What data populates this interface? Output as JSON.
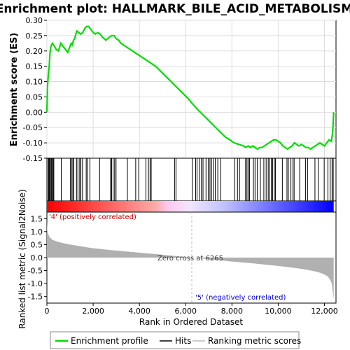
{
  "chart_data": {
    "type": "line",
    "title": "Enrichment plot: HALLMARK_BILE_ACID_METABOLISM",
    "top_panel": {
      "ylabel": "Enrichment score (ES)",
      "ylim": [
        -0.15,
        0.3
      ],
      "yticks": [
        "0.30",
        "0.25",
        "0.20",
        "0.15",
        "0.10",
        "0.05",
        "0.00",
        "-0.05",
        "-0.10",
        "-0.15"
      ],
      "ytick_values": [
        0.3,
        0.25,
        0.2,
        0.15,
        0.1,
        0.05,
        0.0,
        -0.05,
        -0.1,
        -0.15
      ],
      "grid": true,
      "series": [
        {
          "name": "Enrichment profile",
          "color": "#00dd00",
          "x": [
            0,
            30,
            60,
            100,
            130,
            160,
            200,
            240,
            280,
            330,
            400,
            500,
            600,
            700,
            800,
            900,
            1000,
            1050,
            1100,
            1150,
            1200,
            1250,
            1300,
            1380,
            1450,
            1550,
            1650,
            1720,
            1800,
            1900,
            2000,
            2100,
            2200,
            2300,
            2400,
            2550,
            2700,
            2800,
            2900,
            3000,
            3100,
            3200,
            3300,
            3400,
            3500,
            3600,
            3700,
            3800,
            3900,
            4000,
            4100,
            4200,
            4300,
            4400,
            4500,
            4700,
            4900,
            5100,
            5300,
            5500,
            5700,
            5900,
            6100,
            6265,
            6500,
            6700,
            6900,
            7100,
            7300,
            7500,
            7700,
            7900,
            8100,
            8300,
            8500,
            8600,
            8700,
            8800,
            8900,
            9000,
            9100,
            9200,
            9300,
            9400,
            9500,
            9600,
            9700,
            9800,
            9900,
            10000,
            10100,
            10200,
            10300,
            10400,
            10500,
            10600,
            10700,
            10800,
            10900,
            11000,
            11100,
            11200,
            11300,
            11400,
            11500,
            11600,
            11700,
            11800,
            11900,
            12000,
            12100,
            12200,
            12300,
            12350,
            12380,
            12400
          ],
          "y": [
            0.0,
            0.09,
            0.12,
            0.15,
            0.19,
            0.21,
            0.22,
            0.225,
            0.22,
            0.215,
            0.205,
            0.2,
            0.225,
            0.215,
            0.205,
            0.195,
            0.215,
            0.225,
            0.22,
            0.235,
            0.24,
            0.255,
            0.265,
            0.26,
            0.255,
            0.26,
            0.275,
            0.28,
            0.28,
            0.27,
            0.26,
            0.255,
            0.26,
            0.255,
            0.245,
            0.235,
            0.245,
            0.25,
            0.25,
            0.24,
            0.235,
            0.225,
            0.22,
            0.215,
            0.21,
            0.205,
            0.2,
            0.195,
            0.19,
            0.185,
            0.18,
            0.175,
            0.17,
            0.165,
            0.16,
            0.15,
            0.135,
            0.12,
            0.105,
            0.09,
            0.075,
            0.06,
            0.045,
            0.03,
            0.01,
            -0.005,
            -0.02,
            -0.035,
            -0.05,
            -0.065,
            -0.08,
            -0.09,
            -0.1,
            -0.105,
            -0.11,
            -0.115,
            -0.11,
            -0.115,
            -0.11,
            -0.115,
            -0.12,
            -0.115,
            -0.115,
            -0.11,
            -0.105,
            -0.1,
            -0.095,
            -0.09,
            -0.09,
            -0.095,
            -0.1,
            -0.11,
            -0.115,
            -0.12,
            -0.115,
            -0.11,
            -0.1,
            -0.105,
            -0.11,
            -0.105,
            -0.11,
            -0.115,
            -0.115,
            -0.12,
            -0.115,
            -0.11,
            -0.105,
            -0.1,
            -0.105,
            -0.11,
            -0.1,
            -0.09,
            -0.095,
            -0.07,
            -0.03,
            0.0
          ]
        }
      ]
    },
    "hits": [
      60,
      90,
      120,
      160,
      200,
      230,
      270,
      300,
      620,
      1020,
      1060,
      1120,
      1160,
      1280,
      1340,
      1420,
      1470,
      1540,
      1700,
      1750,
      1860,
      2280,
      2750,
      2800,
      2860,
      2930,
      2990,
      3480,
      3840,
      3970,
      4280,
      4390,
      4460,
      4510,
      5520,
      5580,
      6280,
      6430,
      6490,
      6600,
      6680,
      6750,
      6880,
      6980,
      7050,
      7120,
      7200,
      7280,
      7390,
      7520,
      8120,
      8240,
      8330,
      8590,
      8650,
      8700,
      8760,
      8930,
      9000,
      9100,
      9230,
      9380,
      9480,
      9570,
      9640,
      9700,
      9760,
      9830,
      9880,
      10180,
      10380,
      10440,
      10550,
      10640,
      10690,
      10930,
      11180,
      11270,
      11590,
      11730,
      11990,
      12150,
      12250,
      12330,
      12380
    ],
    "bottom_panel": {
      "ylabel": "Ranked list metric (Signal2Noise)",
      "ylim": [
        -1.75,
        1.75
      ],
      "yticks": [
        "1.5",
        "1.0",
        "0.5",
        "0.0",
        "-0.5",
        "-1.0",
        "-1.5"
      ],
      "ytick_values": [
        1.5,
        1.0,
        0.5,
        0.0,
        -0.5,
        -1.0,
        -1.5
      ],
      "metric_x": [
        0,
        20,
        60,
        120,
        250,
        500,
        1000,
        2000,
        3000,
        4000,
        5000,
        6000,
        6265,
        7000,
        8000,
        9000,
        10000,
        11000,
        11500,
        11800,
        12000,
        12150,
        12250,
        12320,
        12360,
        12400
      ],
      "metric_y": [
        1.4,
        1.05,
        0.9,
        0.78,
        0.68,
        0.6,
        0.5,
        0.36,
        0.27,
        0.19,
        0.11,
        0.02,
        0.0,
        -0.06,
        -0.15,
        -0.23,
        -0.32,
        -0.43,
        -0.51,
        -0.58,
        -0.65,
        -0.73,
        -0.85,
        -1.0,
        -1.3,
        -1.6
      ],
      "zero_cross_label": "Zero cross at 6265",
      "zero_cross": 6265,
      "pos_label": "'4' (positively correlated)",
      "neg_label": "'5' (negatively correlated)"
    },
    "xlabel": "Rank in Ordered Dataset",
    "xlim": [
      0,
      12500
    ],
    "xticks": [
      "0",
      "2,000",
      "4,000",
      "6,000",
      "8,000",
      "10,000",
      "12,000"
    ],
    "xtick_values": [
      0,
      2000,
      4000,
      6000,
      8000,
      10000,
      12000
    ],
    "legend": {
      "placement": "bottom",
      "items": [
        {
          "label": "Enrichment profile",
          "color": "#00dd00"
        },
        {
          "label": "Hits",
          "color": "#000000"
        },
        {
          "label": "Ranking metric scores",
          "color": "#bbbbbb"
        }
      ]
    },
    "colors": {
      "positive": "#ff0000",
      "negative": "#0000ff",
      "profile": "#00dd00",
      "metric_fill": "#b0b0b0",
      "pos_label": "#cc0000",
      "neg_label": "#0000cc"
    }
  }
}
